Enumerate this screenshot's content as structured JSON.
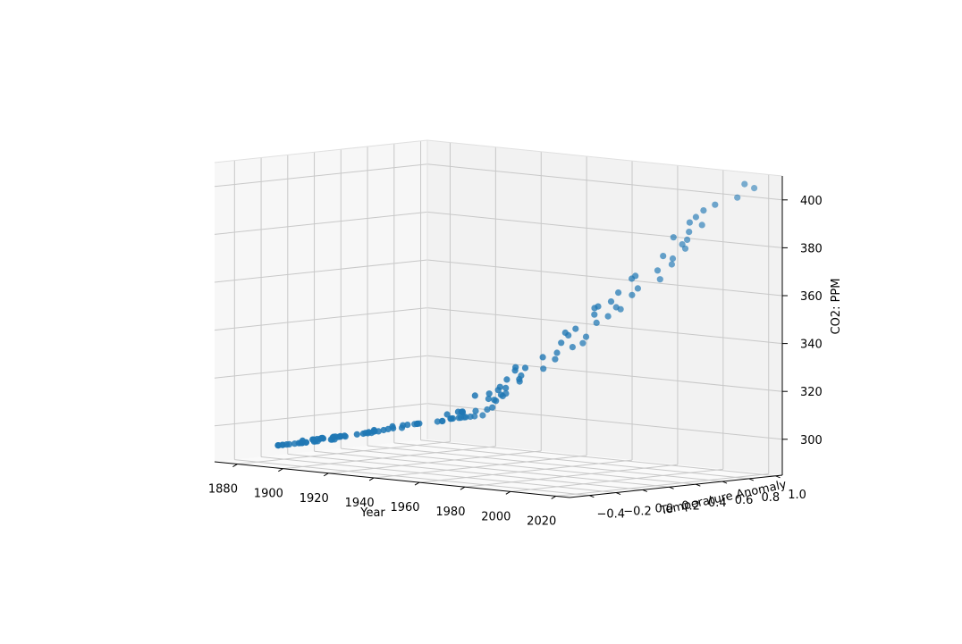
{
  "chart_data": {
    "type": "scatter",
    "projection": "3d",
    "xlabel": "Year",
    "ylabel": "Temperature Anomaly",
    "zlabel": "CO2: PPM",
    "xlim": [
      1870,
      2026
    ],
    "ylim": [
      -0.55,
      1.05
    ],
    "zlim": [
      285,
      410
    ],
    "x_ticks": [
      "1880",
      "1900",
      "1920",
      "1940",
      "1960",
      "1980",
      "2000",
      "2020"
    ],
    "y_ticks": [
      "−0.4",
      "−0.2",
      "0.0",
      "0.2",
      "0.4",
      "0.6",
      "0.8",
      "1.0"
    ],
    "z_ticks": [
      "300",
      "320",
      "340",
      "360",
      "380",
      "400"
    ],
    "grid": true,
    "marker_color": "#1f77b4",
    "pane_colors": {
      "left": "#f7f7f7",
      "back": "#f2f2f2",
      "floor": "#fafafa"
    },
    "series": [
      {
        "x": [
          1880,
          1881,
          1882,
          1883,
          1884,
          1885,
          1886,
          1887,
          1888,
          1889,
          1890,
          1891,
          1892,
          1893,
          1894,
          1895,
          1896,
          1897,
          1898,
          1899,
          1900,
          1901,
          1902,
          1903,
          1904,
          1905,
          1906,
          1907,
          1908,
          1909,
          1910,
          1911,
          1912,
          1913,
          1914,
          1915,
          1916,
          1917,
          1918,
          1919,
          1920,
          1921,
          1922,
          1923,
          1924,
          1925,
          1926,
          1927,
          1928,
          1929,
          1930,
          1931,
          1932,
          1933,
          1934,
          1935,
          1936,
          1937,
          1938,
          1939,
          1940,
          1941,
          1942,
          1943,
          1944,
          1945,
          1946,
          1947,
          1948,
          1949,
          1950,
          1951,
          1952,
          1953,
          1954,
          1955,
          1956,
          1957,
          1958,
          1959,
          1960,
          1961,
          1962,
          1963,
          1964,
          1965,
          1966,
          1967,
          1968,
          1969,
          1970,
          1971,
          1972,
          1973,
          1974,
          1975,
          1976,
          1977,
          1978,
          1979,
          1980,
          1981,
          1982,
          1983,
          1984,
          1985,
          1986,
          1987,
          1988,
          1989,
          1990,
          1991,
          1992,
          1993,
          1994,
          1995,
          1996,
          1997,
          1998,
          1999,
          2000,
          2001,
          2002,
          2003,
          2004,
          2005,
          2006,
          2007,
          2008,
          2009,
          2010,
          2011,
          2012,
          2013,
          2014,
          2015,
          2016,
          2017
        ],
        "y": [
          -0.16,
          -0.08,
          -0.11,
          -0.17,
          -0.28,
          -0.33,
          -0.31,
          -0.36,
          -0.17,
          -0.1,
          -0.35,
          -0.22,
          -0.27,
          -0.31,
          -0.3,
          -0.23,
          -0.11,
          -0.11,
          -0.27,
          -0.17,
          -0.08,
          -0.15,
          -0.28,
          -0.37,
          -0.47,
          -0.26,
          -0.22,
          -0.39,
          -0.43,
          -0.48,
          -0.43,
          -0.44,
          -0.36,
          -0.34,
          -0.15,
          -0.14,
          -0.36,
          -0.46,
          -0.3,
          -0.27,
          -0.27,
          -0.19,
          -0.28,
          -0.26,
          -0.27,
          -0.22,
          -0.1,
          -0.22,
          -0.2,
          -0.36,
          -0.16,
          -0.09,
          -0.16,
          -0.29,
          -0.12,
          -0.14,
          -0.14,
          -0.02,
          0.0,
          -0.02,
          0.13,
          0.19,
          0.07,
          0.09,
          0.2,
          0.09,
          -0.07,
          -0.03,
          -0.11,
          -0.11,
          -0.17,
          -0.07,
          0.01,
          0.08,
          -0.13,
          -0.14,
          -0.19,
          0.05,
          0.06,
          0.03,
          -0.03,
          0.06,
          0.03,
          0.05,
          -0.2,
          -0.11,
          -0.06,
          -0.02,
          -0.08,
          0.05,
          0.03,
          -0.08,
          0.01,
          0.16,
          -0.07,
          -0.01,
          -0.1,
          0.18,
          0.07,
          0.16,
          0.26,
          0.32,
          0.14,
          0.31,
          0.16,
          0.12,
          0.18,
          0.32,
          0.39,
          0.27,
          0.45,
          0.4,
          0.22,
          0.23,
          0.31,
          0.45,
          0.33,
          0.46,
          0.61,
          0.38,
          0.39,
          0.54,
          0.63,
          0.62,
          0.53,
          0.68,
          0.64,
          0.66,
          0.54,
          0.64,
          0.72,
          0.61,
          0.64,
          0.68,
          0.75,
          0.9,
          1.01,
          0.92
        ],
        "z": [
          291,
          291.2,
          291.4,
          291.6,
          291.8,
          292,
          292.2,
          292.4,
          292.6,
          292.8,
          293,
          293.2,
          293.4,
          293.6,
          293.8,
          294,
          294.2,
          294.4,
          294.6,
          294.8,
          295.7,
          296,
          296.2,
          296.4,
          296.6,
          296.8,
          297,
          297.2,
          297.4,
          297.6,
          298,
          298.2,
          298.4,
          298.6,
          298.8,
          299,
          299.2,
          299.4,
          299.6,
          299.8,
          300.2,
          300.5,
          300.8,
          301,
          301.3,
          301.6,
          301.9,
          302.2,
          302.5,
          302.8,
          303.7,
          303.9,
          304.1,
          304.3,
          304.5,
          304.7,
          304.9,
          305.1,
          305.3,
          305.5,
          306.3,
          306.5,
          306.7,
          306.9,
          307.1,
          307.3,
          307.5,
          307.7,
          307.9,
          308.1,
          310.2,
          310.5,
          310.8,
          311.1,
          311.4,
          311.7,
          312,
          312.5,
          315.3,
          316,
          316.9,
          317.6,
          318.4,
          318.9,
          319.6,
          320,
          321.3,
          322,
          322.9,
          324.5,
          325.7,
          326.3,
          327.5,
          329.6,
          330.3,
          331.1,
          332,
          333.8,
          335.4,
          336.8,
          338.7,
          340.1,
          341.4,
          343,
          344.6,
          346,
          347.4,
          349.2,
          351.6,
          353.1,
          354.4,
          355.6,
          356.4,
          357.1,
          358.8,
          360.8,
          362.6,
          363.7,
          366.7,
          368.4,
          369.6,
          371.1,
          373.2,
          375.8,
          377.5,
          379.8,
          381.9,
          383.8,
          385.6,
          387.4,
          389.9,
          391.7,
          393.9,
          396.5,
          398.6,
          400.8,
          404.2,
          406.5
        ]
      }
    ]
  }
}
